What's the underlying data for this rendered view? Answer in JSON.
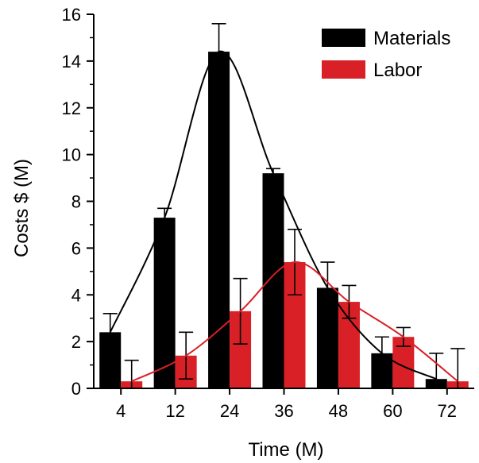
{
  "chart_data": {
    "type": "bar",
    "title": "",
    "xlabel": "Time (M)",
    "ylabel": "Costs $ (M)",
    "categories": [
      "4",
      "12",
      "24",
      "36",
      "48",
      "60",
      "72"
    ],
    "ylim": [
      0,
      16
    ],
    "yticks": [
      0,
      2,
      4,
      6,
      8,
      10,
      12,
      14,
      16
    ],
    "grid": false,
    "legend_position": "top-right",
    "series": [
      {
        "name": "Materials",
        "color": "#000000",
        "values": [
          2.4,
          7.3,
          14.4,
          9.2,
          4.3,
          1.5,
          0.4
        ],
        "errors": [
          0.8,
          0.4,
          1.2,
          0.2,
          1.1,
          0.7,
          1.1
        ],
        "fit_curve": "gaussian"
      },
      {
        "name": "Labor",
        "color": "#d92027",
        "values": [
          0.3,
          1.4,
          3.3,
          5.4,
          3.7,
          2.2,
          0.3
        ],
        "errors": [
          0.9,
          1.0,
          1.4,
          1.4,
          0.7,
          0.4,
          1.4
        ],
        "fit_curve": "gaussian"
      }
    ]
  }
}
